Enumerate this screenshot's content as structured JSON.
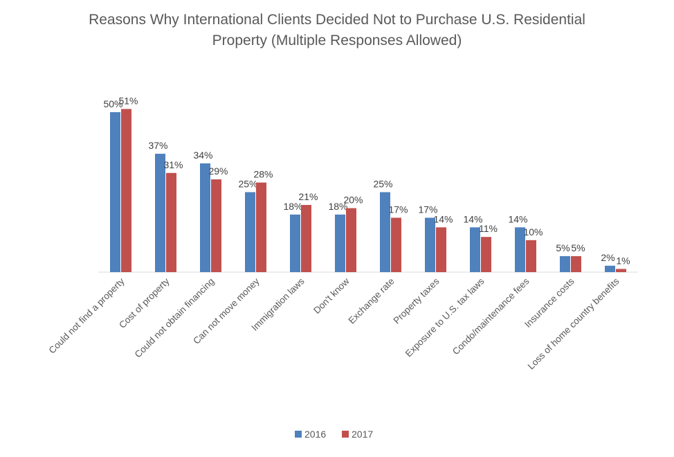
{
  "chart_data": {
    "type": "bar",
    "title_line1": "Reasons Why International Clients Decided Not to Purchase U.S. Residential",
    "title_line2": "Property (Multiple Responses Allowed)",
    "categories": [
      "Could not find a property",
      "Cost of property",
      "Could not obtain financing",
      "Can not move money",
      "Immigration laws",
      "Don't know",
      "Exchange rate",
      "Property taxes",
      "Exposure to U.S. tax laws",
      "Condo/maintenance fees",
      "Insurance costs",
      "Loss of home country benefits"
    ],
    "series": [
      {
        "name": "2016",
        "color": "#4f81bd",
        "values": [
          50,
          37,
          34,
          25,
          18,
          18,
          25,
          17,
          14,
          14,
          5,
          2
        ]
      },
      {
        "name": "2017",
        "color": "#c0504d",
        "values": [
          51,
          31,
          29,
          28,
          21,
          20,
          17,
          14,
          11,
          10,
          5,
          1
        ]
      }
    ],
    "value_suffix": "%",
    "ylim": [
      0,
      55
    ],
    "grid": false,
    "legend_position": "bottom"
  }
}
